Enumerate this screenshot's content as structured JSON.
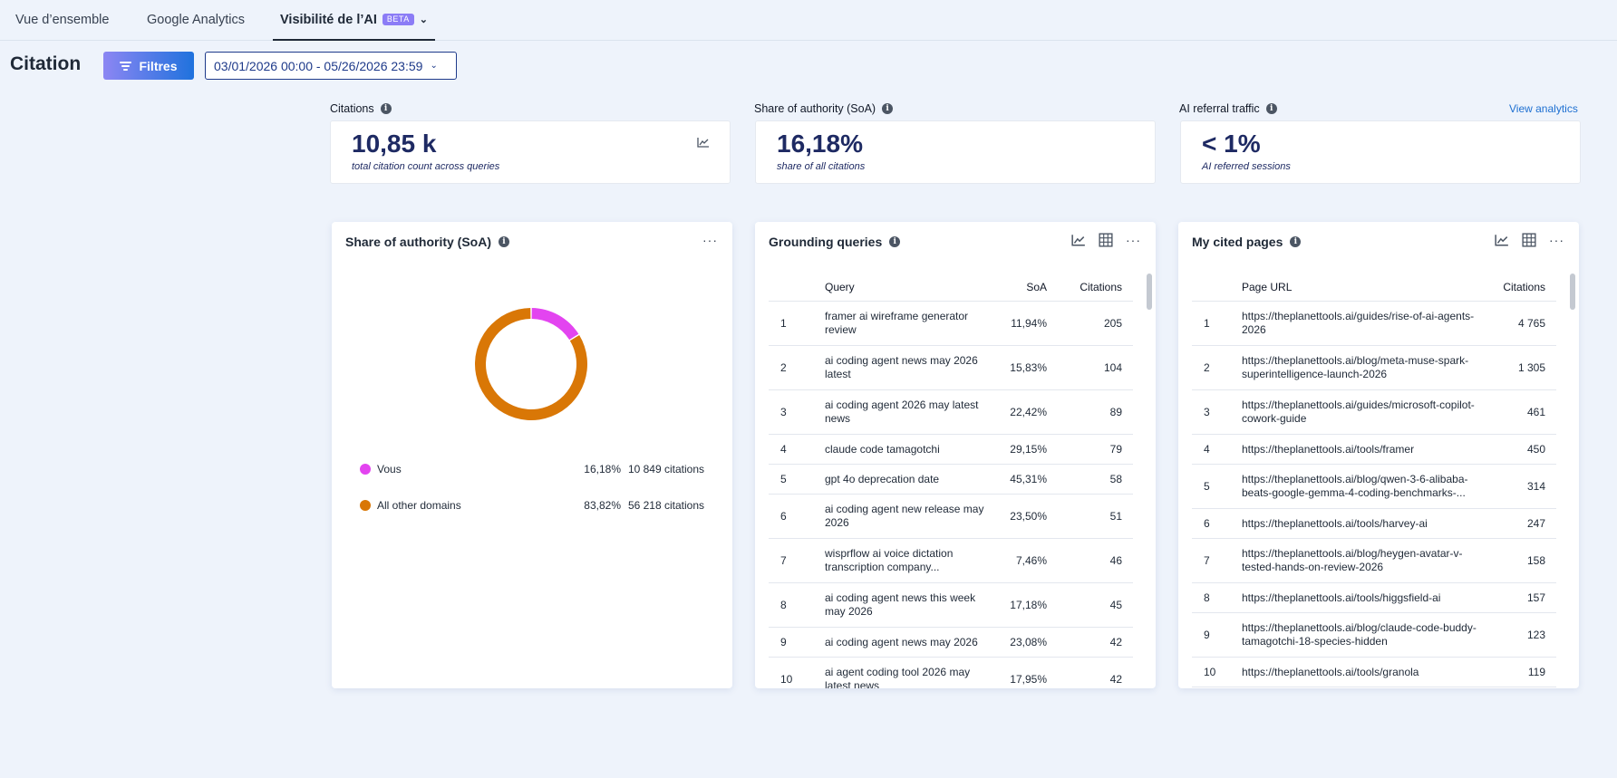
{
  "tabs": [
    {
      "label": "Vue d’ensemble"
    },
    {
      "label": "Google Analytics"
    },
    {
      "label": "Visibilité de l’AI",
      "badge": "BETA"
    }
  ],
  "page": {
    "title": "Citation"
  },
  "toolbar": {
    "filter_label": "Filtres",
    "date_range": "03/01/2026 00:00 - 05/26/2026 23:59"
  },
  "kpis": [
    {
      "label": "Citations",
      "value": "10,85 k",
      "sub": "total citation count across queries",
      "icon": "trend-chart-icon"
    },
    {
      "label": "Share of authority (SoA)",
      "value": "16,18%",
      "sub": "share of all citations"
    },
    {
      "label": "AI referral traffic",
      "value": "< 1%",
      "sub": "AI referred sessions",
      "link": "View analytics"
    }
  ],
  "soa_panel": {
    "title": "Share of authority (SoA)",
    "legend": [
      {
        "name": "Vous",
        "pct": "16,18%",
        "citations": "10 849 citations",
        "color": "#e344f0"
      },
      {
        "name": "All other domains",
        "pct": "83,82%",
        "citations": "56 218 citations",
        "color": "#d97706"
      }
    ]
  },
  "chart_data": {
    "type": "pie",
    "categories": [
      "Vous",
      "All other domains"
    ],
    "values": [
      16.18,
      83.82
    ],
    "colors": [
      "#e344f0",
      "#d97706"
    ]
  },
  "grounding_panel": {
    "title": "Grounding queries",
    "headers": {
      "query": "Query",
      "soa": "SoA",
      "citations": "Citations"
    },
    "rows": [
      {
        "num": "1",
        "query": "framer ai wireframe generator review",
        "soa": "11,94%",
        "citations": "205"
      },
      {
        "num": "2",
        "query": "ai coding agent news may 2026 latest",
        "soa": "15,83%",
        "citations": "104"
      },
      {
        "num": "3",
        "query": "ai coding agent 2026 may latest news",
        "soa": "22,42%",
        "citations": "89"
      },
      {
        "num": "4",
        "query": "claude code tamagotchi",
        "soa": "29,15%",
        "citations": "79"
      },
      {
        "num": "5",
        "query": "gpt 4o deprecation date",
        "soa": "45,31%",
        "citations": "58"
      },
      {
        "num": "6",
        "query": "ai coding agent new release may 2026",
        "soa": "23,50%",
        "citations": "51"
      },
      {
        "num": "7",
        "query": "wisprflow ai voice dictation transcription company...",
        "soa": "7,46%",
        "citations": "46"
      },
      {
        "num": "8",
        "query": "ai coding agent news this week may 2026",
        "soa": "17,18%",
        "citations": "45"
      },
      {
        "num": "9",
        "query": "ai coding agent news may 2026",
        "soa": "23,08%",
        "citations": "42"
      },
      {
        "num": "10",
        "query": "ai agent coding tool 2026 may latest news",
        "soa": "17,95%",
        "citations": "42"
      }
    ]
  },
  "pages_panel": {
    "title": "My cited pages",
    "headers": {
      "url": "Page URL",
      "citations": "Citations"
    },
    "rows": [
      {
        "num": "1",
        "url": "https://theplanettools.ai/guides/rise-of-ai-agents-2026",
        "citations": "4 765"
      },
      {
        "num": "2",
        "url": "https://theplanettools.ai/blog/meta-muse-spark-superintelligence-launch-2026",
        "citations": "1 305"
      },
      {
        "num": "3",
        "url": "https://theplanettools.ai/guides/microsoft-copilot-cowork-guide",
        "citations": "461"
      },
      {
        "num": "4",
        "url": "https://theplanettools.ai/tools/framer",
        "citations": "450"
      },
      {
        "num": "5",
        "url": "https://theplanettools.ai/blog/qwen-3-6-alibaba-beats-google-gemma-4-coding-benchmarks-...",
        "citations": "314"
      },
      {
        "num": "6",
        "url": "https://theplanettools.ai/tools/harvey-ai",
        "citations": "247"
      },
      {
        "num": "7",
        "url": "https://theplanettools.ai/blog/heygen-avatar-v-tested-hands-on-review-2026",
        "citations": "158"
      },
      {
        "num": "8",
        "url": "https://theplanettools.ai/tools/higgsfield-ai",
        "citations": "157"
      },
      {
        "num": "9",
        "url": "https://theplanettools.ai/blog/claude-code-buddy-tamagotchi-18-species-hidden",
        "citations": "123"
      },
      {
        "num": "10",
        "url": "https://theplanettools.ai/tools/granola",
        "citations": "119"
      }
    ]
  }
}
